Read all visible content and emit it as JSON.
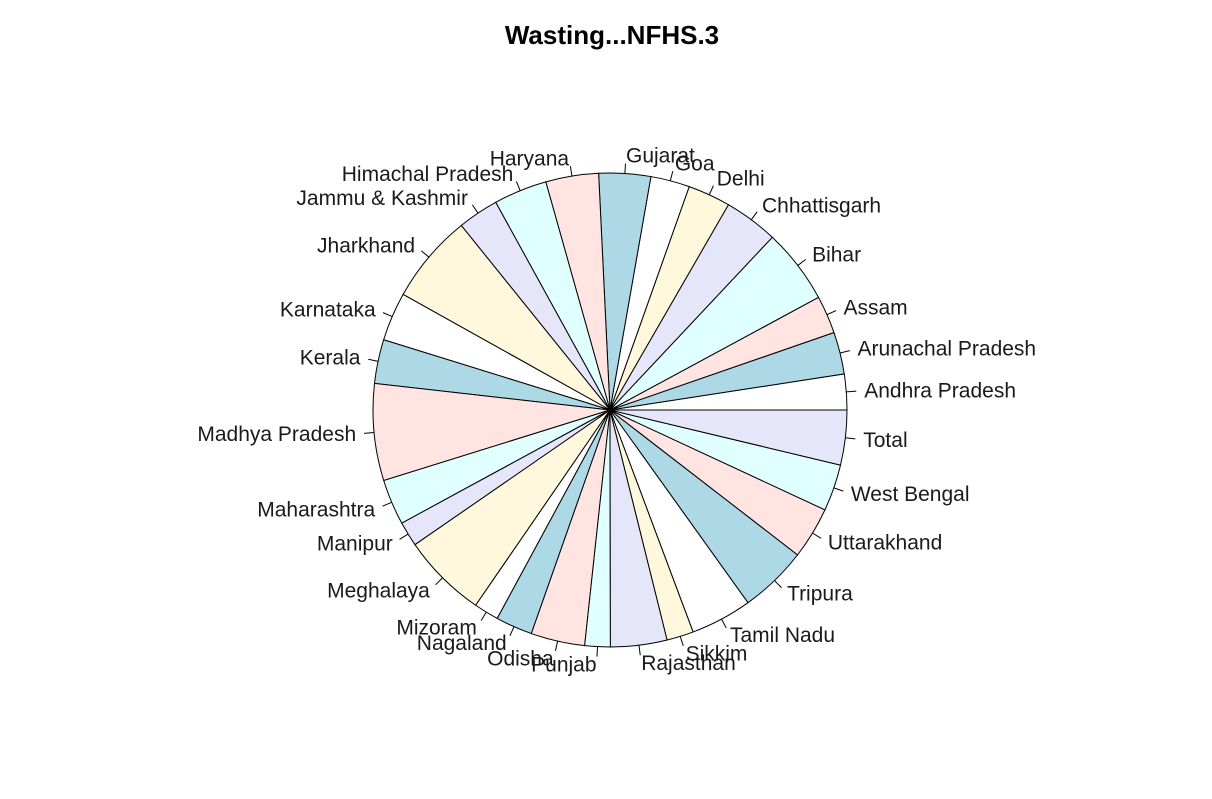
{
  "chart_data": {
    "type": "pie",
    "title": "Wasting...NFHS.3",
    "direction": "counterclockwise",
    "start_angle_deg": 0,
    "palette": [
      "#FFFFFF",
      "#ADD8E6",
      "#FFE4E1",
      "#E0FFFF",
      "#E6E6FA",
      "#FFF8DC"
    ],
    "slices": [
      {
        "label": "Andhra Pradesh",
        "value": 12.9
      },
      {
        "label": "Arunachal Pradesh",
        "value": 15.2
      },
      {
        "label": "Assam",
        "value": 13.7
      },
      {
        "label": "Bihar",
        "value": 27.1
      },
      {
        "label": "Chhattisgarh",
        "value": 19.5
      },
      {
        "label": "Delhi",
        "value": 15.4
      },
      {
        "label": "Goa",
        "value": 14.1
      },
      {
        "label": "Gujarat",
        "value": 18.7
      },
      {
        "label": "Haryana",
        "value": 19.1
      },
      {
        "label": "Himachal Pradesh",
        "value": 19.3
      },
      {
        "label": "Jammu & Kashmir",
        "value": 14.8
      },
      {
        "label": "Jharkhand",
        "value": 32.3
      },
      {
        "label": "Karnataka",
        "value": 17.6
      },
      {
        "label": "Kerala",
        "value": 15.9
      },
      {
        "label": "Madhya Pradesh",
        "value": 35.0
      },
      {
        "label": "Maharashtra",
        "value": 16.5
      },
      {
        "label": "Manipur",
        "value": 9.0
      },
      {
        "label": "Meghalaya",
        "value": 30.7
      },
      {
        "label": "Mizoram",
        "value": 9.0
      },
      {
        "label": "Nagaland",
        "value": 13.3
      },
      {
        "label": "Odisha",
        "value": 19.5
      },
      {
        "label": "Punjab",
        "value": 9.2
      },
      {
        "label": "Rajasthan",
        "value": 20.4
      },
      {
        "label": "Sikkim",
        "value": 9.7
      },
      {
        "label": "Tamil Nadu",
        "value": 22.2
      },
      {
        "label": "Tripura",
        "value": 24.6
      },
      {
        "label": "Uttarakhand",
        "value": 18.8
      },
      {
        "label": "West Bengal",
        "value": 16.9
      },
      {
        "label": "Total",
        "value": 19.8
      }
    ]
  }
}
